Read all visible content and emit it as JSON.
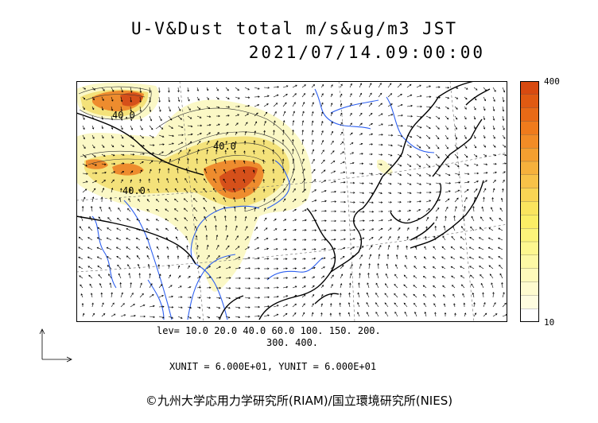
{
  "title": {
    "line1": "U-V&Dust total m/s&ug/m3 JST",
    "line2": "2021/07/14.09:00:00"
  },
  "map": {
    "contour_labels": [
      "40.0",
      "40.0",
      "40.0"
    ],
    "colors": {
      "dust_low": "#fbf8c6",
      "dust_mid": "#f4e27a",
      "dust_high": "#ee8c2e",
      "dust_max": "#d6501a",
      "rivers": "#2c5ff0",
      "coast": "#000000"
    }
  },
  "color_scale": {
    "max_label": "400",
    "min_label": "10",
    "colors": [
      "#d84a10",
      "#e05a12",
      "#e86a16",
      "#ef7b1c",
      "#f28c26",
      "#f49f30",
      "#f6b13c",
      "#f8c248",
      "#f9d454",
      "#fae45e",
      "#fbee66",
      "#fcf47a",
      "#fdf78f",
      "#fdf9a5",
      "#fefabb",
      "#fefbcf",
      "#fefce0",
      "#ffffff"
    ]
  },
  "levels": {
    "line1": "lev= 10.0 20.0 40.0 60.0 100. 150. 200.",
    "line2": "300. 400."
  },
  "units": {
    "line": "XUNIT = 6.000E+01, YUNIT = 6.000E+01"
  },
  "copyright": "©九州大学応用力学研究所(RIAM)/国立環境研究所(NIES)"
}
